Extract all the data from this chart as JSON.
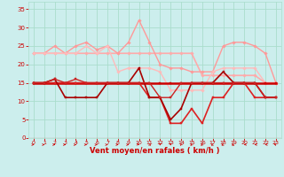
{
  "x": [
    0,
    1,
    2,
    3,
    4,
    5,
    6,
    7,
    8,
    9,
    10,
    11,
    12,
    13,
    14,
    15,
    16,
    17,
    18,
    19,
    20,
    21,
    22,
    23
  ],
  "series": [
    {
      "y": [
        23,
        23,
        23,
        23,
        23,
        23,
        23,
        23,
        23,
        23,
        23,
        23,
        23,
        23,
        23,
        23,
        17,
        17,
        17,
        17,
        17,
        17,
        15,
        15
      ],
      "color": "#ffaaaa",
      "lw": 1.2,
      "marker": "D",
      "ms": 1.8
    },
    {
      "y": [
        23,
        23,
        25,
        23,
        25,
        26,
        24,
        25,
        23,
        26,
        32,
        26,
        20,
        19,
        19,
        18,
        18,
        18,
        25,
        26,
        26,
        25,
        23,
        15
      ],
      "color": "#ff9999",
      "lw": 1.0,
      "marker": "D",
      "ms": 1.8
    },
    {
      "y": [
        23,
        23,
        23,
        23,
        23,
        25,
        23,
        25,
        18,
        19,
        19,
        19,
        18,
        13,
        13,
        13,
        13,
        18,
        19,
        19,
        19,
        19,
        15,
        15
      ],
      "color": "#ffbbbb",
      "lw": 1.0,
      "marker": "D",
      "ms": 1.8
    },
    {
      "y": [
        15,
        15,
        15,
        15,
        15,
        15,
        15,
        15,
        15,
        15,
        15,
        15,
        15,
        15,
        15,
        15,
        15,
        15,
        15,
        15,
        15,
        15,
        15,
        15
      ],
      "color": "#cc0000",
      "lw": 1.8,
      "marker": "s",
      "ms": 2.0
    },
    {
      "y": [
        15,
        15,
        15,
        15,
        15,
        15,
        15,
        15,
        15,
        15,
        15,
        11,
        11,
        4,
        4,
        8,
        4,
        11,
        11,
        15,
        15,
        11,
        11,
        11
      ],
      "color": "#dd2222",
      "lw": 1.2,
      "marker": "s",
      "ms": 1.8
    },
    {
      "y": [
        15,
        15,
        16,
        11,
        11,
        11,
        11,
        15,
        15,
        15,
        19,
        11,
        11,
        5,
        8,
        15,
        15,
        15,
        18,
        15,
        15,
        15,
        11,
        11
      ],
      "color": "#aa0000",
      "lw": 1.2,
      "marker": "s",
      "ms": 1.8
    },
    {
      "y": [
        15,
        15,
        16,
        15,
        16,
        15,
        15,
        15,
        15,
        15,
        15,
        15,
        11,
        11,
        15,
        15,
        15,
        15,
        15,
        15,
        15,
        15,
        11,
        11
      ],
      "color": "#cc2222",
      "lw": 1.0,
      "marker": "s",
      "ms": 1.8
    }
  ],
  "arrows": {
    "u": [
      1,
      1,
      1,
      1,
      1,
      1,
      1,
      1,
      1,
      1,
      0.7,
      0.4,
      0,
      0,
      -0.3,
      -0.5,
      -0.5,
      -0.7,
      -0.7,
      -0.8,
      -1,
      -0.9,
      -0.8,
      -0.5
    ],
    "v": [
      0,
      0,
      0,
      0,
      0,
      0,
      0,
      0,
      0,
      0,
      -0.3,
      -0.6,
      -1,
      -1,
      -1,
      -1,
      -1,
      -0.9,
      -0.8,
      -0.7,
      -0.3,
      -0.2,
      -0.1,
      0.5
    ]
  },
  "bg_color": "#cceeed",
  "grid_color": "#aaddcc",
  "xlabel": "Vent moyen/en rafales ( km/h )",
  "tick_color": "#cc0000",
  "ylim": [
    0,
    37
  ],
  "yticks": [
    0,
    5,
    10,
    15,
    20,
    25,
    30,
    35
  ],
  "xlim": [
    -0.5,
    23.5
  ]
}
